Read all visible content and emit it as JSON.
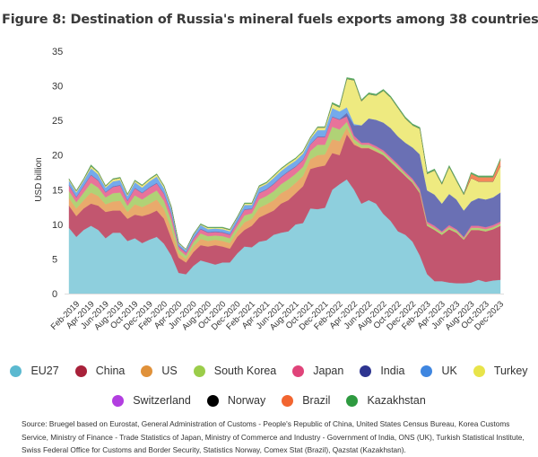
{
  "title": "Figure 8: Destination of Russia's mineral fuels exports among 38 countries",
  "source": "Source: Bruegel based on Eurostat, General Administration of Customs - People's Republic of China, United States Census Bureau, Korea Customs Service, Ministry of Finance - Trade Statistics of Japan, Ministry of Commerce and Industry - Government of India, ONS (UK), Turkish Statistical Institute, Swiss Federal Office for Customs and Border Security, Statistics Norway, Comex Stat (Brazil), Qazstat (Kazakhstan).",
  "chart_data": {
    "type": "area",
    "stacked": true,
    "title": "Figure 8: Destination of Russia's mineral fuels exports among 38 countries",
    "ylabel": "USD billion",
    "xlabel": "",
    "ylim": [
      0,
      35
    ],
    "yticks": [
      0,
      5,
      10,
      15,
      20,
      25,
      30,
      35
    ],
    "grid": false,
    "legend_placement": "bottom",
    "x_start": "Jan-2019",
    "x_end": "Dec-2023",
    "xtick_labels": [
      "Feb-2019",
      "Apr-2019",
      "Jun-2019",
      "Aug-2019",
      "Oct-2019",
      "Dec-2019",
      "Feb-2020",
      "Apr-2020",
      "Jun-2020",
      "Aug-2020",
      "Oct-2020",
      "Dec-2020",
      "Feb-2021",
      "Apr-2021",
      "Jun-2021",
      "Aug-2021",
      "Oct-2021",
      "Dec-2021",
      "Feb-2022",
      "Apr-2022",
      "Jun-2022",
      "Aug-2022",
      "Oct-2022",
      "Dec-2022",
      "Feb-2023",
      "Apr-2023",
      "Jun-2023",
      "Aug-2023",
      "Oct-2023",
      "Dec-2023"
    ],
    "series": [
      {
        "name": "EU27",
        "color": "#8ecfdd",
        "legend_color": "#5bb9d0",
        "values": [
          9.5,
          8.2,
          9.2,
          9.8,
          9.2,
          8.0,
          8.8,
          8.8,
          7.6,
          8.0,
          7.3,
          7.8,
          8.2,
          7.2,
          5.5,
          3.0,
          2.8,
          4.0,
          4.8,
          4.5,
          4.2,
          4.5,
          4.5,
          5.8,
          6.8,
          6.7,
          7.5,
          7.7,
          8.5,
          8.8,
          9.0,
          10.0,
          10.2,
          12.3,
          12.2,
          12.4,
          15.0,
          15.8,
          16.5,
          15.0,
          13.0,
          13.5,
          13.0,
          11.5,
          10.5,
          9.0,
          8.5,
          7.5,
          5.5,
          2.8,
          1.8,
          1.8,
          1.6,
          1.5,
          1.5,
          1.6,
          2.0,
          1.7,
          1.9,
          2.0
        ]
      },
      {
        "name": "China",
        "color": "#c2566f",
        "legend_color": "#a8213a",
        "values": [
          3.2,
          3.0,
          3.1,
          3.2,
          3.5,
          3.8,
          3.2,
          3.2,
          3.2,
          3.4,
          3.9,
          3.7,
          3.8,
          3.6,
          2.5,
          2.2,
          1.7,
          2.0,
          2.2,
          2.3,
          2.8,
          2.3,
          2.0,
          2.4,
          2.4,
          3.1,
          3.5,
          3.8,
          3.5,
          4.2,
          4.5,
          4.5,
          5.3,
          5.7,
          6.1,
          6.1,
          5.3,
          4.2,
          6.5,
          6.5,
          8.0,
          7.5,
          7.5,
          8.5,
          8.5,
          9.0,
          8.5,
          8.5,
          9.0,
          7.0,
          7.4,
          6.7,
          7.7,
          7.3,
          6.3,
          7.6,
          7.2,
          7.3,
          7.4,
          7.8
        ]
      },
      {
        "name": "US",
        "color": "#e9aa6c",
        "legend_color": "#e0913a",
        "values": [
          1.1,
          1.1,
          1.2,
          1.6,
          1.4,
          1.1,
          1.3,
          1.4,
          1.0,
          1.5,
          1.3,
          1.5,
          1.6,
          1.4,
          1.4,
          0.6,
          0.5,
          0.8,
          0.9,
          0.8,
          0.8,
          0.8,
          0.8,
          0.8,
          1.1,
          1.0,
          1.4,
          1.4,
          1.5,
          1.5,
          1.6,
          1.5,
          1.5,
          1.4,
          1.7,
          1.6,
          2.0,
          2.0,
          1.0,
          0.3,
          0.1,
          0.1,
          0.1,
          0,
          0,
          0,
          0,
          0,
          0,
          0,
          0,
          0,
          0,
          0,
          0,
          0,
          0,
          0,
          0,
          0
        ]
      },
      {
        "name": "South Korea",
        "color": "#b0d276",
        "legend_color": "#9bcd4a",
        "values": [
          1.0,
          0.9,
          1.1,
          1.4,
          1.2,
          1.0,
          1.2,
          1.2,
          0.9,
          1.3,
          1.1,
          1.3,
          1.3,
          1.2,
          1.2,
          0.6,
          0.5,
          0.6,
          0.8,
          0.7,
          0.6,
          0.7,
          0.7,
          0.7,
          1.0,
          0.8,
          1.2,
          1.2,
          1.3,
          1.3,
          1.4,
          1.3,
          1.3,
          1.2,
          1.5,
          1.4,
          1.8,
          1.7,
          0.8,
          0.5,
          0.4,
          0.4,
          0.4,
          0.4,
          0.4,
          0.4,
          0.3,
          0.3,
          0.3,
          0.3,
          0.3,
          0.3,
          0.3,
          0.3,
          0.2,
          0.3,
          0.3,
          0.3,
          0.3,
          0.3
        ]
      },
      {
        "name": "Japan",
        "color": "#e8739a",
        "legend_color": "#e0447a",
        "values": [
          0.8,
          0.7,
          0.9,
          1.1,
          1.0,
          0.7,
          0.9,
          1.0,
          0.7,
          1.0,
          0.9,
          1.0,
          1.0,
          1.0,
          0.9,
          0.4,
          0.4,
          0.5,
          0.6,
          0.5,
          0.5,
          0.5,
          0.5,
          0.6,
          0.8,
          0.6,
          0.9,
          0.9,
          1.0,
          1.0,
          1.1,
          1.0,
          1.0,
          0.9,
          1.1,
          1.1,
          1.4,
          1.4,
          0.8,
          0.5,
          0.3,
          0.3,
          0.3,
          0.3,
          0.3,
          0.3,
          0.3,
          0.3,
          0.3,
          0.3,
          0.3,
          0.2,
          0.3,
          0.2,
          0.2,
          0.3,
          0.3,
          0.3,
          0.3,
          0.3
        ]
      },
      {
        "name": "India",
        "color": "#6a70b4",
        "legend_color": "#2e3590",
        "values": [
          0.1,
          0.1,
          0.1,
          0.1,
          0.1,
          0.1,
          0.1,
          0.1,
          0.1,
          0.1,
          0.1,
          0.1,
          0.1,
          0.1,
          0.1,
          0.1,
          0.1,
          0.1,
          0.1,
          0.1,
          0.1,
          0.1,
          0.1,
          0.1,
          0.1,
          0.1,
          0.1,
          0.1,
          0.1,
          0.1,
          0.1,
          0.1,
          0.1,
          0.1,
          0.1,
          0.1,
          0.1,
          0.1,
          0.5,
          1.5,
          2.5,
          3.5,
          3.8,
          4.0,
          4.2,
          4.0,
          4.2,
          4.5,
          5.0,
          4.5,
          4.5,
          4.0,
          4.5,
          4.3,
          3.8,
          3.5,
          4.0,
          4.0,
          4.0,
          4.2
        ]
      },
      {
        "name": "UK",
        "color": "#74aaec",
        "legend_color": "#3f86e0",
        "values": [
          0.6,
          0.6,
          0.7,
          0.9,
          0.8,
          0.6,
          0.7,
          0.7,
          0.6,
          0.8,
          0.7,
          0.8,
          0.9,
          0.7,
          0.7,
          0.3,
          0.3,
          0.4,
          0.5,
          0.4,
          0.4,
          0.4,
          0.4,
          0.5,
          0.6,
          0.5,
          0.7,
          0.7,
          0.8,
          0.8,
          0.8,
          0.8,
          0.8,
          0.7,
          0.9,
          0.9,
          1.2,
          1.1,
          0.8,
          0.2,
          0,
          0,
          0,
          0,
          0,
          0,
          0,
          0,
          0,
          0,
          0,
          0,
          0,
          0,
          0,
          0,
          0,
          0,
          0,
          0
        ]
      },
      {
        "name": "Turkey",
        "color": "#eeea80",
        "legend_color": "#e8e44a",
        "values": [
          0.2,
          0.2,
          0.2,
          0.3,
          0.3,
          0.2,
          0.3,
          0.3,
          0.2,
          0.2,
          0.3,
          0.3,
          0.3,
          0.3,
          0.2,
          0.1,
          0.1,
          0.1,
          0.1,
          0.2,
          0.1,
          0.2,
          0.2,
          0.1,
          0.2,
          0.2,
          0.2,
          0.2,
          0.3,
          0.3,
          0.3,
          0.3,
          0.3,
          0.2,
          0.4,
          0.4,
          0.6,
          0.6,
          4.1,
          6.3,
          3.5,
          3.5,
          3.5,
          4.6,
          4.4,
          4.1,
          3.5,
          3.2,
          3.7,
          2.4,
          3.5,
          2.8,
          3.9,
          2.7,
          2.3,
          3.4,
          2.4,
          2.6,
          2.3,
          3.8
        ]
      },
      {
        "name": "Switzerland",
        "color": "#b858dc",
        "legend_color": "#b23ee0",
        "values": [
          0,
          0,
          0,
          0,
          0,
          0,
          0,
          0,
          0,
          0,
          0,
          0,
          0,
          0,
          0,
          0,
          0,
          0,
          0,
          0,
          0,
          0,
          0,
          0,
          0,
          0,
          0,
          0,
          0,
          0,
          0,
          0,
          0,
          0,
          0,
          0,
          0,
          0,
          0,
          0,
          0,
          0,
          0,
          0,
          0,
          0,
          0,
          0,
          0,
          0,
          0,
          0,
          0,
          0,
          0,
          0,
          0,
          0,
          0,
          0
        ]
      },
      {
        "name": "Norway",
        "color": "#222222",
        "legend_color": "#000000",
        "values": [
          0,
          0,
          0,
          0,
          0,
          0,
          0,
          0,
          0,
          0,
          0,
          0,
          0,
          0,
          0,
          0,
          0,
          0,
          0,
          0,
          0,
          0,
          0,
          0,
          0,
          0,
          0,
          0,
          0,
          0,
          0,
          0,
          0,
          0,
          0,
          0,
          0,
          0,
          0,
          0,
          0,
          0,
          0,
          0,
          0,
          0,
          0,
          0,
          0,
          0,
          0,
          0,
          0,
          0,
          0,
          0,
          0,
          0,
          0,
          0
        ]
      },
      {
        "name": "Brazil",
        "color": "#f4875a",
        "legend_color": "#f26530",
        "values": [
          0,
          0,
          0,
          0,
          0,
          0,
          0,
          0,
          0,
          0,
          0,
          0,
          0,
          0,
          0,
          0,
          0,
          0,
          0,
          0,
          0,
          0,
          0,
          0,
          0,
          0,
          0,
          0,
          0,
          0,
          0,
          0,
          0,
          0,
          0,
          0,
          0,
          0,
          0,
          0,
          0,
          0,
          0,
          0,
          0,
          0,
          0,
          0,
          0,
          0,
          0,
          0,
          0,
          0,
          0,
          0.6,
          0.6,
          0.6,
          0.6,
          0.9
        ]
      },
      {
        "name": "Kazakhstan",
        "color": "#5aa862",
        "legend_color": "#2e9a40",
        "values": [
          0.1,
          0.1,
          0.1,
          0.2,
          0.1,
          0.1,
          0.1,
          0.1,
          0.1,
          0.1,
          0.1,
          0.1,
          0.1,
          0.1,
          0.1,
          0.1,
          0,
          0.1,
          0.1,
          0.1,
          0.1,
          0.1,
          0.1,
          0.1,
          0.1,
          0.1,
          0.1,
          0.1,
          0.1,
          0.1,
          0.1,
          0.1,
          0.1,
          0.1,
          0.1,
          0.1,
          0.2,
          0.2,
          0.2,
          0.2,
          0.2,
          0.2,
          0.2,
          0.2,
          0.2,
          0.2,
          0.2,
          0.2,
          0.2,
          0.2,
          0.2,
          0.2,
          0.2,
          0.2,
          0.2,
          0.2,
          0.2,
          0.2,
          0.2,
          0.2
        ]
      }
    ]
  }
}
